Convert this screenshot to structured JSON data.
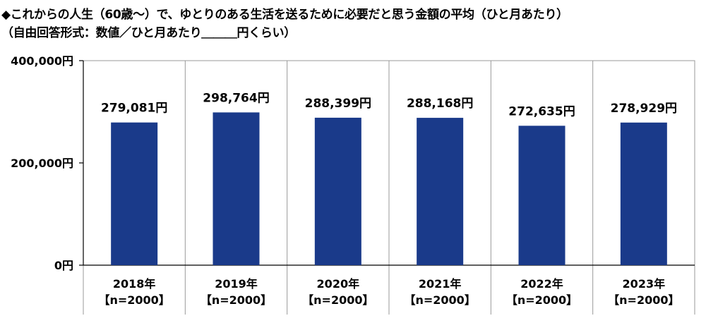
{
  "header": {
    "title_line1": "◆これからの人生（60歳～）で、ゆとりのある生活を送るために必要だと思う金額の平均（ひと月あたり）",
    "title_line2": "（自由回答形式：数値／ひと月あたり＿＿＿円くらい）"
  },
  "chart_data": {
    "type": "bar",
    "categories": [
      "2018年",
      "2019年",
      "2020年",
      "2021年",
      "2022年",
      "2023年"
    ],
    "category_sublabels": [
      "【n=2000】",
      "【n=2000】",
      "【n=2000】",
      "【n=2000】",
      "【n=2000】",
      "【n=2000】"
    ],
    "values": [
      279081,
      298764,
      288399,
      288168,
      272635,
      278929
    ],
    "data_labels": [
      "279,081円",
      "298,764円",
      "288,399円",
      "288,168円",
      "272,635円",
      "278,929円"
    ],
    "ylim": [
      0,
      400000
    ],
    "y_ticks": [
      0,
      200000,
      400000
    ],
    "y_tick_labels": [
      "0円",
      "200,000円",
      "400,000円"
    ],
    "bar_color": "#1a3a8a",
    "grid": false
  }
}
